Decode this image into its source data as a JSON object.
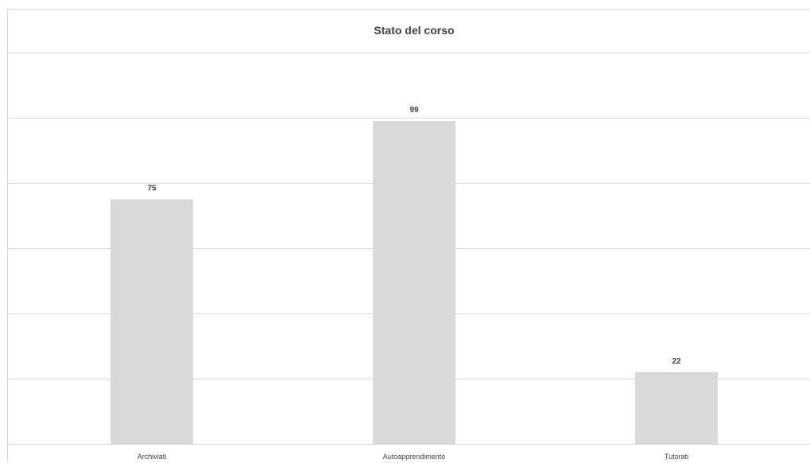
{
  "chart_data": {
    "type": "bar",
    "title": "Stato del corso",
    "categories": [
      "Archiviati",
      "Autoapprendimento",
      "Tutorati"
    ],
    "values": [
      75,
      99,
      22
    ],
    "ylim": [
      0,
      120
    ],
    "grid": true,
    "legend": "none",
    "data_labels": true,
    "colors": {
      "bar": "#d9d9d9",
      "gridline": "#d9d9d9",
      "text": "#404040"
    }
  }
}
